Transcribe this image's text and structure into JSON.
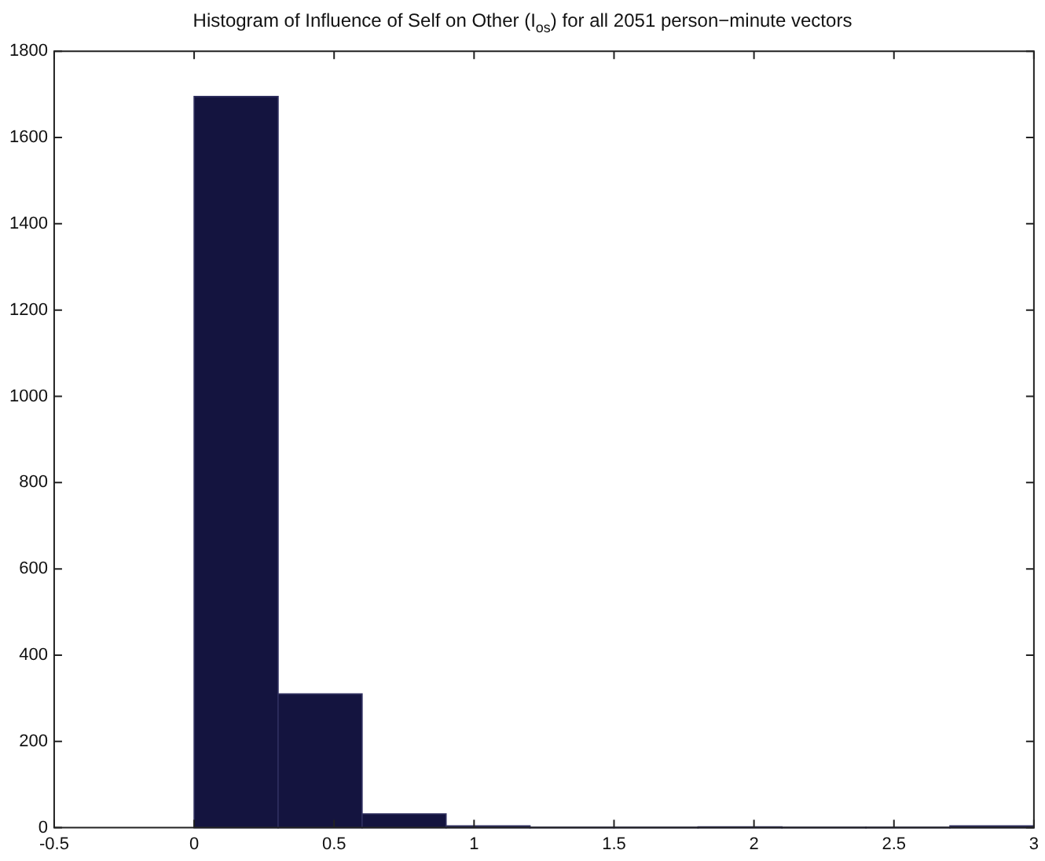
{
  "chart_data": {
    "type": "histogram",
    "title": "Histogram of Influence of Self on Other (I$_{os}$) for all 2051 person−minute vectors",
    "bins": [
      0,
      0.3,
      0.6,
      0.9,
      1.2,
      1.5,
      1.8,
      2.1,
      2.4,
      2.7,
      3.0
    ],
    "values": [
      1695,
      310,
      32,
      4,
      1,
      1,
      2,
      1,
      1,
      4
    ],
    "color": "#14143f",
    "xlim": [
      -0.5,
      3
    ],
    "xticks": [
      -0.5,
      0,
      0.5,
      1,
      1.5,
      2,
      2.5,
      3
    ],
    "ylim": [
      0,
      1800
    ],
    "yticks": [
      0,
      200,
      400,
      600,
      800,
      1000,
      1200,
      1400,
      1600,
      1800
    ],
    "grid": false,
    "legend": false
  }
}
